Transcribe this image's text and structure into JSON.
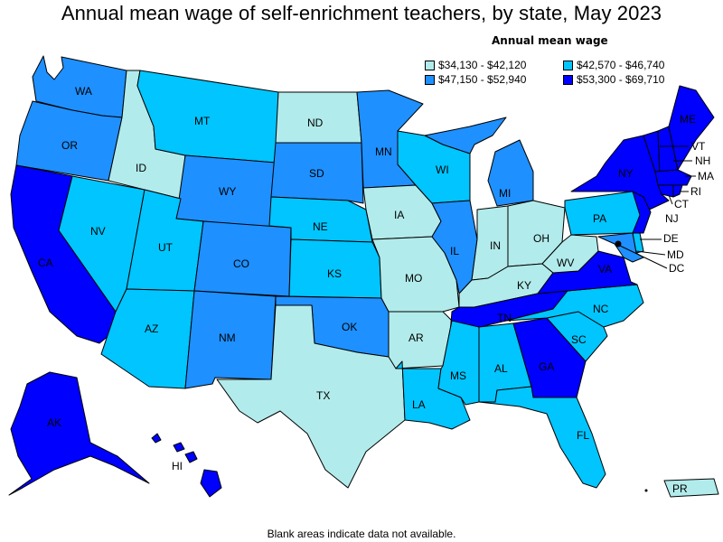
{
  "title": "Annual mean wage of self-enrichment teachers, by state, May 2023",
  "legend": {
    "title": "Annual mean wage",
    "items": [
      {
        "label": "$34,130 - $42,120",
        "color": "#b2ebeb"
      },
      {
        "label": "$42,570 - $46,740",
        "color": "#00c5ff"
      },
      {
        "label": "$47,150 - $52,940",
        "color": "#1e90ff"
      },
      {
        "label": "$53,300 - $69,710",
        "color": "#0000ff"
      }
    ]
  },
  "states": {
    "WA": "WA",
    "OR": "OR",
    "CA": "CA",
    "NV": "NV",
    "ID": "ID",
    "MT": "MT",
    "WY": "WY",
    "UT": "UT",
    "AZ": "AZ",
    "CO": "CO",
    "NM": "NM",
    "ND": "ND",
    "SD": "SD",
    "NE": "NE",
    "KS": "KS",
    "OK": "OK",
    "TX": "TX",
    "MN": "MN",
    "IA": "IA",
    "MO": "MO",
    "AR": "AR",
    "LA": "LA",
    "WI": "WI",
    "IL": "IL",
    "MI": "MI",
    "IN": "IN",
    "OH": "OH",
    "KY": "KY",
    "TN": "TN",
    "MS": "MS",
    "AL": "AL",
    "GA": "GA",
    "FL": "FL",
    "SC": "SC",
    "NC": "NC",
    "VA": "VA",
    "WV": "WV",
    "PA": "PA",
    "NY": "NY",
    "ME": "ME",
    "VT": "VT",
    "NH": "NH",
    "MA": "MA",
    "RI": "RI",
    "CT": "CT",
    "NJ": "NJ",
    "DE": "DE",
    "MD": "MD",
    "DC": "DC",
    "AK": "AK",
    "HI": "HI",
    "PR": "PR"
  },
  "footnote": "Blank areas indicate data not available."
}
